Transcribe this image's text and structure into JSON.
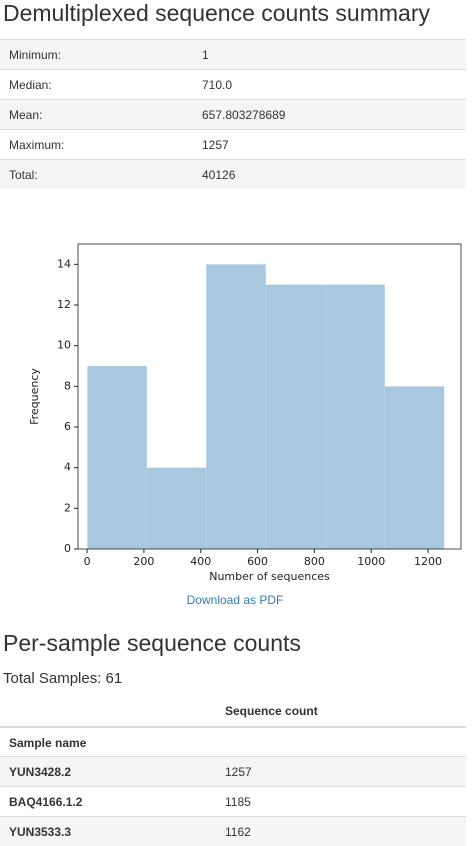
{
  "header": {
    "title": "Demultiplexed sequence counts summary"
  },
  "summary": {
    "rows": [
      [
        "Minimum:",
        "1"
      ],
      [
        "Median:",
        "710.0"
      ],
      [
        "Mean:",
        "657.803278689"
      ],
      [
        "Maximum:",
        "1257"
      ],
      [
        "Total:",
        "40126"
      ]
    ]
  },
  "chart_data": {
    "type": "histogram",
    "xlabel": "Number of sequences",
    "ylabel": "Frequency",
    "bins": [
      1,
      210.33,
      419.67,
      629,
      838.33,
      1047.67,
      1257
    ],
    "values": [
      9,
      4,
      14,
      13,
      13,
      8
    ],
    "color": "#a8c8e0",
    "xlim": [
      -32,
      1316
    ],
    "xticks": [
      0,
      200,
      400,
      600,
      800,
      1000,
      1200
    ],
    "ylim": [
      0,
      15
    ],
    "yticks": [
      0,
      2,
      4,
      6,
      8,
      10,
      12,
      14
    ]
  },
  "link": "Download as PDF",
  "section": {
    "title": "Per-sample sequence counts",
    "total": "Total Samples: 61"
  },
  "table": {
    "column_header": "Sequence count",
    "index_name": "Sample name",
    "rows": [
      [
        "YUN3428.2",
        "1257"
      ],
      [
        "BAQ4166.1.2",
        "1185"
      ],
      [
        "YUN3533.3",
        "1162"
      ]
    ]
  }
}
